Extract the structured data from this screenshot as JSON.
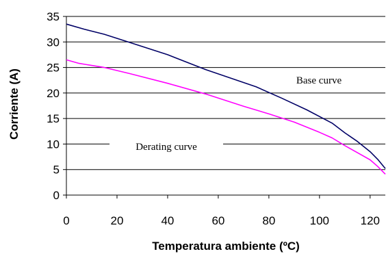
{
  "chart_data": {
    "type": "line",
    "xlabel": "Temperatura ambiente (ºC)",
    "ylabel": "Corriente (A)",
    "xlim": [
      0,
      126
    ],
    "ylim": [
      0,
      35
    ],
    "x_ticks": [
      "0",
      "20",
      "40",
      "60",
      "80",
      "100",
      "120"
    ],
    "y_ticks": [
      "0",
      "5",
      "10",
      "15",
      "20",
      "25",
      "30",
      "35"
    ],
    "grid": "horizontal",
    "legend": "none",
    "annotations": [
      "Base curve",
      "Derating curve"
    ],
    "series": [
      {
        "name": "Base curve",
        "color": "#000066",
        "x": [
          0,
          7,
          15,
          25,
          40,
          55,
          65,
          75,
          85,
          95,
          105,
          110,
          115,
          120,
          123,
          126
        ],
        "y": [
          33.5,
          32.5,
          31.5,
          29.9,
          27.5,
          24.6,
          22.9,
          21.2,
          19.0,
          16.7,
          14.1,
          12.2,
          10.5,
          8.5,
          7.0,
          5.2
        ]
      },
      {
        "name": "Derating curve",
        "color": "#ff00ff",
        "x": [
          0,
          5,
          15,
          25,
          40,
          55,
          70,
          80,
          90,
          100,
          105,
          110,
          115,
          120,
          123,
          126
        ],
        "y": [
          26.5,
          25.8,
          25.0,
          23.8,
          21.9,
          19.8,
          17.4,
          15.9,
          14.3,
          12.3,
          11.2,
          9.7,
          8.3,
          6.9,
          5.6,
          4.1
        ]
      }
    ]
  }
}
